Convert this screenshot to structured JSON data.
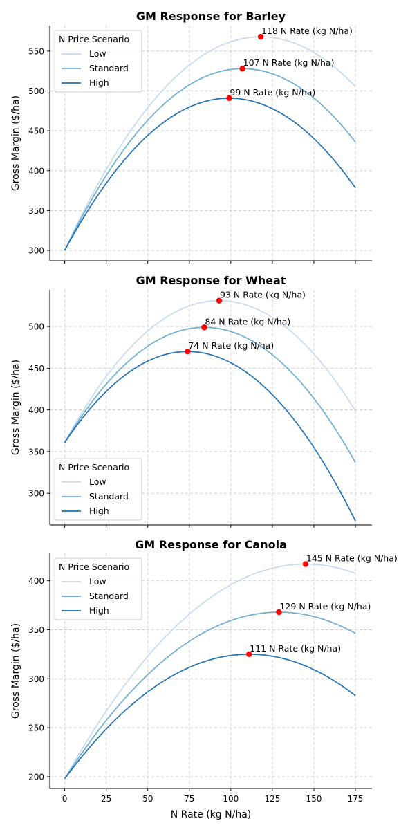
{
  "figure": {
    "xlabel": "N Rate (kg N/ha)"
  },
  "chart_data": [
    {
      "type": "line",
      "title": "GM Response for Barley",
      "xlabel": "",
      "ylabel": "Gross Margin ($/ha)",
      "xlim": [
        -9,
        185
      ],
      "ylim": [
        287,
        582
      ],
      "x_ticks": [
        0,
        25,
        50,
        75,
        100,
        125,
        150,
        175
      ],
      "x_tick_labels_shown": false,
      "y_ticks": [
        300,
        350,
        400,
        450,
        500,
        550
      ],
      "grid": true,
      "legend_title": "N Price Scenario",
      "legend_position": "upper-left",
      "series": [
        {
          "name": "Low",
          "color": "#c6dbef",
          "x_range": [
            0,
            175
          ],
          "start_y": 300,
          "optimum_x": 118,
          "optimum_y": 568,
          "annotation": "118 N Rate (kg N/ha)"
        },
        {
          "name": "Standard",
          "color": "#6baed6",
          "x_range": [
            0,
            175
          ],
          "start_y": 300,
          "optimum_x": 107,
          "optimum_y": 528,
          "annotation": "107 N Rate (kg N/ha)"
        },
        {
          "name": "High",
          "color": "#2171b5",
          "x_range": [
            0,
            175
          ],
          "start_y": 300,
          "optimum_x": 99,
          "optimum_y": 491,
          "annotation": "99 N Rate (kg N/ha)"
        }
      ]
    },
    {
      "type": "line",
      "title": "GM Response for Wheat",
      "xlabel": "",
      "ylabel": "Gross Margin ($/ha)",
      "xlim": [
        -9,
        185
      ],
      "ylim": [
        262,
        544
      ],
      "x_ticks": [
        0,
        25,
        50,
        75,
        100,
        125,
        150,
        175
      ],
      "x_tick_labels_shown": false,
      "y_ticks": [
        300,
        350,
        400,
        450,
        500
      ],
      "grid": true,
      "legend_title": "N Price Scenario",
      "legend_position": "lower-left",
      "series": [
        {
          "name": "Low",
          "color": "#c6dbef",
          "x_range": [
            0,
            175
          ],
          "start_y": 361,
          "optimum_x": 93,
          "optimum_y": 531,
          "annotation": "93 N Rate (kg N/ha)"
        },
        {
          "name": "Standard",
          "color": "#6baed6",
          "x_range": [
            0,
            175
          ],
          "start_y": 361,
          "optimum_x": 84,
          "optimum_y": 499,
          "annotation": "84 N Rate (kg N/ha)"
        },
        {
          "name": "High",
          "color": "#2171b5",
          "x_range": [
            0,
            175
          ],
          "start_y": 361,
          "optimum_x": 74,
          "optimum_y": 470,
          "annotation": "74 N Rate (kg N/ha)"
        }
      ]
    },
    {
      "type": "line",
      "title": "GM Response for Canola",
      "xlabel": "N Rate (kg N/ha)",
      "ylabel": "Gross Margin ($/ha)",
      "xlim": [
        -9,
        185
      ],
      "ylim": [
        188,
        428
      ],
      "x_ticks": [
        0,
        25,
        50,
        75,
        100,
        125,
        150,
        175
      ],
      "x_tick_labels_shown": true,
      "y_ticks": [
        200,
        250,
        300,
        350,
        400
      ],
      "grid": true,
      "legend_title": "N Price Scenario",
      "legend_position": "upper-left",
      "series": [
        {
          "name": "Low",
          "color": "#c6dbef",
          "x_range": [
            0,
            175
          ],
          "start_y": 198,
          "optimum_x": 145,
          "optimum_y": 417,
          "annotation": "145 N Rate (kg N/ha)"
        },
        {
          "name": "Standard",
          "color": "#6baed6",
          "x_range": [
            0,
            175
          ],
          "start_y": 198,
          "optimum_x": 129,
          "optimum_y": 368,
          "annotation": "129 N Rate (kg N/ha)"
        },
        {
          "name": "High",
          "color": "#2171b5",
          "x_range": [
            0,
            175
          ],
          "start_y": 198,
          "optimum_x": 111,
          "optimum_y": 325,
          "annotation": "111 N Rate (kg N/ha)"
        }
      ]
    }
  ],
  "colors": {
    "optimum_marker": "#ff0000",
    "grid": "#cccccc"
  }
}
